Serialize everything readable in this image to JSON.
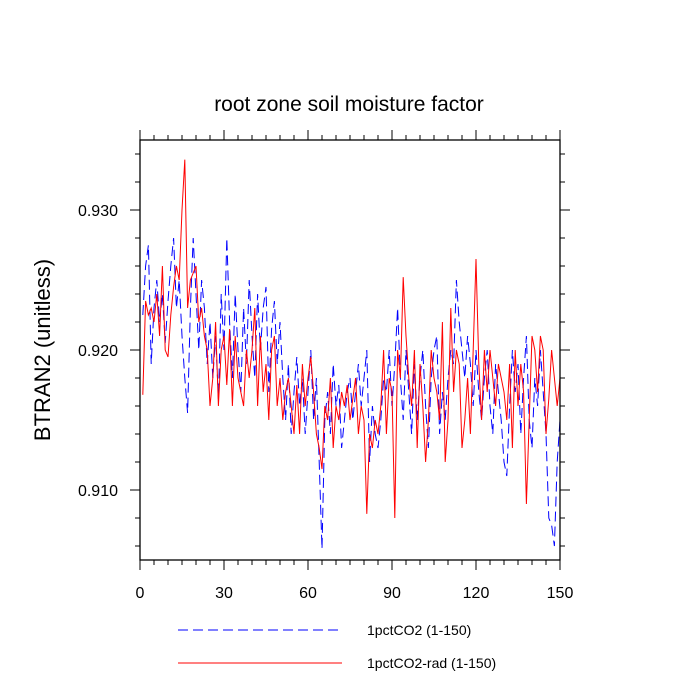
{
  "chart_data": {
    "type": "line",
    "title": "root zone soil moisture factor",
    "xlabel": "",
    "ylabel": "BTRAN2  (unitless)",
    "xlim": [
      0,
      150
    ],
    "ylim": [
      0.905,
      0.935
    ],
    "xticks": [
      0,
      30,
      60,
      90,
      120,
      150
    ],
    "xtick_labels": [
      "0",
      "30",
      "60",
      "90",
      "120",
      "150"
    ],
    "yticks": [
      0.91,
      0.92,
      0.93
    ],
    "ytick_labels": [
      "0.910",
      "0.920",
      "0.930"
    ],
    "grid": false,
    "legend_position": "bottom",
    "series": [
      {
        "name": "1pctCO2 (1-150)",
        "color": "#0000ff",
        "dash": "dashed",
        "x": [
          1,
          2,
          3,
          4,
          5,
          6,
          7,
          8,
          9,
          10,
          11,
          12,
          13,
          14,
          15,
          16,
          17,
          18,
          19,
          20,
          21,
          22,
          23,
          24,
          25,
          26,
          27,
          28,
          29,
          30,
          31,
          32,
          33,
          34,
          35,
          36,
          37,
          38,
          39,
          40,
          41,
          42,
          43,
          44,
          45,
          46,
          47,
          48,
          49,
          50,
          51,
          52,
          53,
          54,
          55,
          56,
          57,
          58,
          59,
          60,
          61,
          62,
          63,
          64,
          65,
          66,
          67,
          68,
          69,
          70,
          71,
          72,
          73,
          74,
          75,
          76,
          77,
          78,
          79,
          80,
          81,
          82,
          83,
          84,
          85,
          86,
          87,
          88,
          89,
          90,
          91,
          92,
          93,
          94,
          95,
          96,
          97,
          98,
          99,
          100,
          101,
          102,
          103,
          104,
          105,
          106,
          107,
          108,
          109,
          110,
          111,
          112,
          113,
          114,
          115,
          116,
          117,
          118,
          119,
          120,
          121,
          122,
          123,
          124,
          125,
          126,
          127,
          128,
          129,
          130,
          131,
          132,
          133,
          134,
          135,
          136,
          137,
          138,
          139,
          140,
          141,
          142,
          143,
          144,
          145,
          146,
          147,
          148,
          149,
          150
        ],
        "values": [
          0.9225,
          0.926,
          0.9275,
          0.919,
          0.923,
          0.925,
          0.922,
          0.924,
          0.9205,
          0.9235,
          0.926,
          0.928,
          0.923,
          0.925,
          0.921,
          0.918,
          0.9155,
          0.923,
          0.928,
          0.924,
          0.92,
          0.925,
          0.923,
          0.919,
          0.922,
          0.918,
          0.921,
          0.9165,
          0.924,
          0.92,
          0.928,
          0.922,
          0.918,
          0.924,
          0.92,
          0.917,
          0.923,
          0.919,
          0.925,
          0.921,
          0.918,
          0.924,
          0.92,
          0.923,
          0.9245,
          0.917,
          0.9215,
          0.9235,
          0.919,
          0.922,
          0.918,
          0.915,
          0.919,
          0.914,
          0.917,
          0.9195,
          0.916,
          0.918,
          0.914,
          0.917,
          0.92,
          0.915,
          0.918,
          0.912,
          0.9058,
          0.915,
          0.917,
          0.914,
          0.919,
          0.916,
          0.9175,
          0.913,
          0.915,
          0.917,
          0.918,
          0.915,
          0.917,
          0.919,
          0.916,
          0.918,
          0.92,
          0.912,
          0.916,
          0.914,
          0.913,
          0.915,
          0.918,
          0.917,
          0.92,
          0.916,
          0.919,
          0.923,
          0.918,
          0.915,
          0.92,
          0.917,
          0.914,
          0.919,
          0.915,
          0.918,
          0.92,
          0.916,
          0.913,
          0.918,
          0.92,
          0.921,
          0.914,
          0.917,
          0.915,
          0.918,
          0.92,
          0.919,
          0.925,
          0.922,
          0.92,
          0.918,
          0.921,
          0.919,
          0.916,
          0.92,
          0.917,
          0.915,
          0.918,
          0.92,
          0.916,
          0.914,
          0.919,
          0.917,
          0.915,
          0.912,
          0.911,
          0.916,
          0.92,
          0.917,
          0.919,
          0.914,
          0.918,
          0.921,
          0.915,
          0.913,
          0.918,
          0.916,
          0.92,
          0.917,
          0.914,
          0.908,
          0.9075,
          0.906,
          0.912,
          0.915
        ]
      },
      {
        "name": "1pctCO2-rad (1-150)",
        "color": "#ff0000",
        "dash": "solid",
        "x": [
          1,
          2,
          3,
          4,
          5,
          6,
          7,
          8,
          9,
          10,
          11,
          12,
          13,
          14,
          15,
          16,
          17,
          18,
          19,
          20,
          21,
          22,
          23,
          24,
          25,
          26,
          27,
          28,
          29,
          30,
          31,
          32,
          33,
          34,
          35,
          36,
          37,
          38,
          39,
          40,
          41,
          42,
          43,
          44,
          45,
          46,
          47,
          48,
          49,
          50,
          51,
          52,
          53,
          54,
          55,
          56,
          57,
          58,
          59,
          60,
          61,
          62,
          63,
          64,
          65,
          66,
          67,
          68,
          69,
          70,
          71,
          72,
          73,
          74,
          75,
          76,
          77,
          78,
          79,
          80,
          81,
          82,
          83,
          84,
          85,
          86,
          87,
          88,
          89,
          90,
          91,
          92,
          93,
          94,
          95,
          96,
          97,
          98,
          99,
          100,
          101,
          102,
          103,
          104,
          105,
          106,
          107,
          108,
          109,
          110,
          111,
          112,
          113,
          114,
          115,
          116,
          117,
          118,
          119,
          120,
          121,
          122,
          123,
          124,
          125,
          126,
          127,
          128,
          129,
          130,
          131,
          132,
          133,
          134,
          135,
          136,
          137,
          138,
          139,
          140,
          141,
          142,
          143,
          144,
          145,
          146,
          147,
          148,
          149,
          150
        ],
        "values": [
          0.9168,
          0.9235,
          0.9225,
          0.923,
          0.922,
          0.924,
          0.921,
          0.926,
          0.92,
          0.9195,
          0.9225,
          0.9245,
          0.926,
          0.925,
          0.93,
          0.9336,
          0.923,
          0.925,
          0.9255,
          0.926,
          0.922,
          0.923,
          0.921,
          0.92,
          0.916,
          0.918,
          0.922,
          0.916,
          0.92,
          0.921,
          0.9175,
          0.9215,
          0.916,
          0.921,
          0.918,
          0.917,
          0.916,
          0.92,
          0.918,
          0.92,
          0.923,
          0.916,
          0.921,
          0.917,
          0.919,
          0.915,
          0.92,
          0.921,
          0.916,
          0.918,
          0.915,
          0.917,
          0.918,
          0.916,
          0.914,
          0.9175,
          0.914,
          0.919,
          0.916,
          0.918,
          0.9195,
          0.917,
          0.914,
          0.913,
          0.9115,
          0.916,
          0.915,
          0.918,
          0.913,
          0.916,
          0.915,
          0.917,
          0.916,
          0.9175,
          0.915,
          0.9165,
          0.918,
          0.914,
          0.916,
          0.915,
          0.9083,
          0.914,
          0.913,
          0.915,
          0.914,
          0.916,
          0.92,
          0.914,
          0.918,
          0.917,
          0.908,
          0.92,
          0.918,
          0.9252,
          0.921,
          0.918,
          0.916,
          0.92,
          0.913,
          0.919,
          0.916,
          0.912,
          0.915,
          0.92,
          0.918,
          0.917,
          0.915,
          0.922,
          0.912,
          0.915,
          0.923,
          0.917,
          0.92,
          0.919,
          0.913,
          0.915,
          0.918,
          0.914,
          0.92,
          0.9265,
          0.919,
          0.915,
          0.92,
          0.917,
          0.92,
          0.918,
          0.916,
          0.919,
          0.918,
          0.917,
          0.915,
          0.919,
          0.913,
          0.92,
          0.916,
          0.919,
          0.917,
          0.909,
          0.915,
          0.921,
          0.92,
          0.917,
          0.921,
          0.92,
          0.914,
          0.9165,
          0.92,
          0.918,
          0.916,
          0.918
        ]
      }
    ]
  }
}
